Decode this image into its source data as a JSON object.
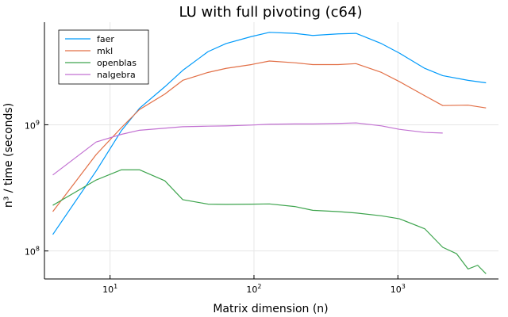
{
  "chart_data": {
    "type": "line",
    "title": "LU with full pivoting (c64)",
    "xlabel": "Matrix dimension (n)",
    "ylabel": "n³ / time (seconds)",
    "xscale": "log",
    "yscale": "log",
    "xlim": [
      3.5,
      5000
    ],
    "ylim": [
      60000000,
      6500000000
    ],
    "grid": true,
    "legend_position": "top-left",
    "x_ticks": [
      {
        "value": 10,
        "base": "10",
        "exp": "1"
      },
      {
        "value": 100,
        "base": "10",
        "exp": "2"
      },
      {
        "value": 1000,
        "base": "10",
        "exp": "3"
      }
    ],
    "y_ticks": [
      {
        "value": 100000000,
        "base": "10",
        "exp": "8"
      },
      {
        "value": 1000000000,
        "base": "10",
        "exp": "9"
      }
    ],
    "series": [
      {
        "name": "faer",
        "color": "#009AFA",
        "x": [
          4,
          8,
          12,
          16,
          24,
          32,
          48,
          64,
          96,
          128,
          192,
          256,
          384,
          512,
          768,
          1024,
          1536,
          2048,
          3072,
          4096
        ],
        "y": [
          135000000,
          430000000,
          900000000,
          1350000000,
          2000000000,
          2700000000,
          3800000000,
          4400000000,
          5000000000,
          5400000000,
          5300000000,
          5100000000,
          5250000000,
          5300000000,
          4400000000,
          3700000000,
          2800000000,
          2450000000,
          2250000000,
          2150000000
        ]
      },
      {
        "name": "mkl",
        "color": "#E26F46",
        "x": [
          4,
          8,
          12,
          16,
          24,
          32,
          48,
          64,
          96,
          128,
          192,
          256,
          384,
          512,
          768,
          1024,
          1536,
          2048,
          3072,
          4096
        ],
        "y": [
          205000000,
          580000000,
          950000000,
          1320000000,
          1750000000,
          2250000000,
          2600000000,
          2800000000,
          3000000000,
          3200000000,
          3100000000,
          3000000000,
          3000000000,
          3050000000,
          2600000000,
          2200000000,
          1700000000,
          1420000000,
          1430000000,
          1360000000
        ]
      },
      {
        "name": "openblas",
        "color": "#3DA44D",
        "x": [
          4,
          8,
          12,
          16,
          24,
          32,
          48,
          64,
          96,
          128,
          192,
          256,
          384,
          512,
          768,
          1024,
          1536,
          2048,
          2560,
          3072,
          3584,
          4096
        ],
        "y": [
          230000000,
          365000000,
          440000000,
          440000000,
          360000000,
          255000000,
          235000000,
          234000000,
          235000000,
          236000000,
          225000000,
          210000000,
          205000000,
          200000000,
          190000000,
          180000000,
          150000000,
          107000000,
          95000000,
          72000000,
          77000000,
          66000000
        ]
      },
      {
        "name": "nalgebra",
        "color": "#C271D2",
        "x": [
          4,
          8,
          12,
          16,
          24,
          32,
          48,
          64,
          96,
          128,
          192,
          256,
          384,
          512,
          768,
          1024,
          1536,
          2048
        ],
        "y": [
          400000000,
          730000000,
          840000000,
          905000000,
          940000000,
          965000000,
          975000000,
          980000000,
          995000000,
          1010000000,
          1015000000,
          1015000000,
          1025000000,
          1035000000,
          980000000,
          920000000,
          870000000,
          860000000
        ]
      }
    ]
  }
}
